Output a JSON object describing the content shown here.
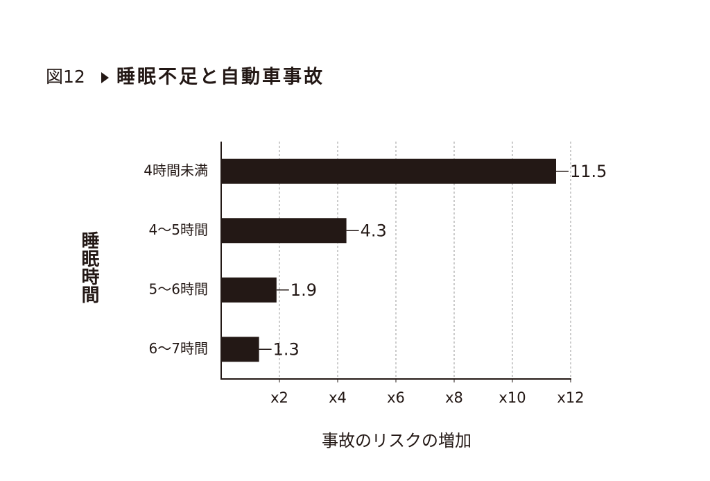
{
  "chart_data": {
    "type": "bar",
    "orientation": "horizontal",
    "title_label": "図12",
    "title": "睡眠不足と自動車事故",
    "y_label": "睡眠時間",
    "x_label": "事故のリスクの増加",
    "categories": [
      "4時間未満",
      "4〜5時間",
      "5〜6時間",
      "6〜7時間"
    ],
    "values": [
      11.5,
      4.3,
      1.9,
      1.3
    ],
    "color": "#231815",
    "xlim": [
      0,
      12
    ],
    "xticks": [
      {
        "value": 2,
        "label": "x2"
      },
      {
        "value": 4,
        "label": "x4"
      },
      {
        "value": 6,
        "label": "x6"
      },
      {
        "value": 8,
        "label": "x8"
      },
      {
        "value": 10,
        "label": "x10"
      },
      {
        "value": 12,
        "label": "x12"
      }
    ],
    "grid": true
  }
}
